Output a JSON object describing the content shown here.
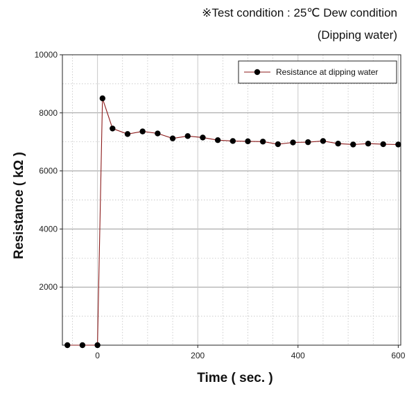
{
  "notes": {
    "line1": "※Test condition : 25℃ Dew condition",
    "line2": "(Dipping water)"
  },
  "chart_data": {
    "type": "line",
    "title": "",
    "xlabel": "Time ( sec. )",
    "ylabel": "Resistance ( kΩ )",
    "xlim": [
      -70,
      605
    ],
    "ylim": [
      0,
      10000
    ],
    "x_ticks": [
      0,
      200,
      400,
      600
    ],
    "y_ticks": [
      2000,
      4000,
      6000,
      8000,
      10000
    ],
    "grid": true,
    "legend_position": "top-right",
    "line_color": "#8b1a1a",
    "marker_color": "#000000",
    "series": [
      {
        "name": "Resistance at dipping water",
        "x": [
          -60,
          -30,
          0,
          10,
          30,
          60,
          90,
          120,
          150,
          180,
          210,
          240,
          270,
          300,
          330,
          360,
          390,
          420,
          450,
          480,
          510,
          540,
          570,
          600
        ],
        "y": [
          0,
          0,
          0,
          8500,
          7460,
          7270,
          7360,
          7290,
          7120,
          7200,
          7150,
          7060,
          7030,
          7020,
          7010,
          6920,
          6980,
          6990,
          7030,
          6940,
          6910,
          6940,
          6920,
          6910
        ]
      }
    ]
  }
}
